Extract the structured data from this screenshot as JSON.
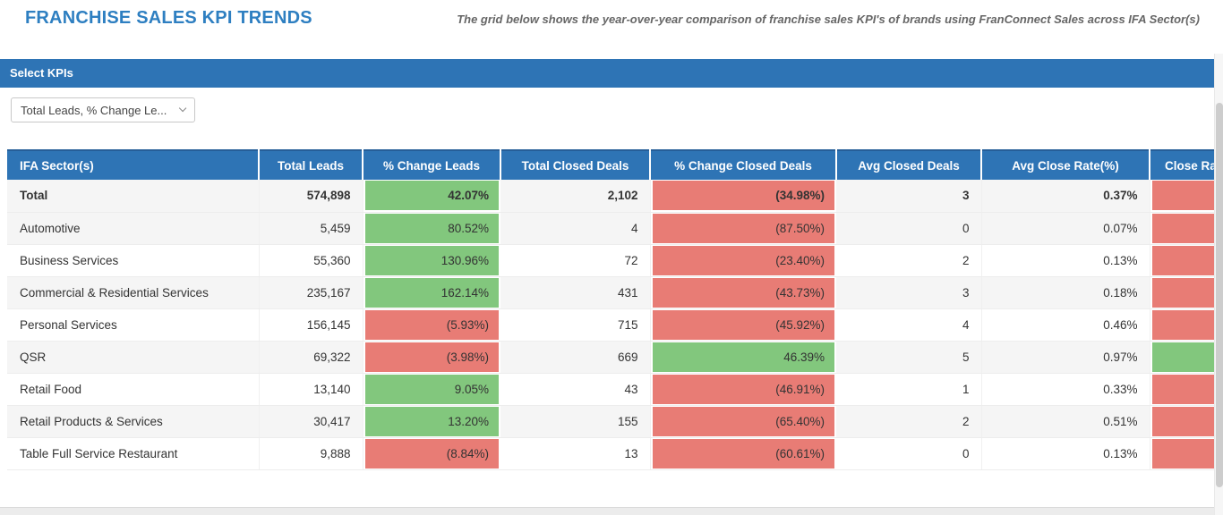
{
  "page": {
    "title": "FRANCHISE SALES KPI TRENDS",
    "subtitle": "The grid below shows the year-over-year comparison of franchise sales KPI's of brands using FranConnect Sales across IFA Sector(s)"
  },
  "kpi_panel": {
    "header": "Select KPIs",
    "dropdown_value": "Total Leads, % Change Le...",
    "dropdown_icon": "chevron-down-icon"
  },
  "colors": {
    "accent_blue": "#2e74b5",
    "title_blue": "#2e7fc1",
    "positive_green": "#82c77d",
    "negative_red": "#e87c75"
  },
  "table": {
    "columns": [
      "IFA Sector(s)",
      "Total Leads",
      "% Change Leads",
      "Total Closed Deals",
      "% Change Closed Deals",
      "Avg Closed Deals",
      "Avg Close Rate(%)",
      "Close Ra"
    ],
    "rows": [
      {
        "sector": "Total",
        "total_leads": "574,898",
        "pct_change_leads": "42.07%",
        "pct_change_leads_trend": "positive",
        "total_closed_deals": "2,102",
        "pct_change_closed_deals": "(34.98%)",
        "pct_change_closed_deals_trend": "negative",
        "avg_closed_deals": "3",
        "avg_close_rate": "0.37%",
        "close_rate_trend": "negative"
      },
      {
        "sector": "Automotive",
        "total_leads": "5,459",
        "pct_change_leads": "80.52%",
        "pct_change_leads_trend": "positive",
        "total_closed_deals": "4",
        "pct_change_closed_deals": "(87.50%)",
        "pct_change_closed_deals_trend": "negative",
        "avg_closed_deals": "0",
        "avg_close_rate": "0.07%",
        "close_rate_trend": "negative"
      },
      {
        "sector": "Business Services",
        "total_leads": "55,360",
        "pct_change_leads": "130.96%",
        "pct_change_leads_trend": "positive",
        "total_closed_deals": "72",
        "pct_change_closed_deals": "(23.40%)",
        "pct_change_closed_deals_trend": "negative",
        "avg_closed_deals": "2",
        "avg_close_rate": "0.13%",
        "close_rate_trend": "negative"
      },
      {
        "sector": "Commercial & Residential Services",
        "total_leads": "235,167",
        "pct_change_leads": "162.14%",
        "pct_change_leads_trend": "positive",
        "total_closed_deals": "431",
        "pct_change_closed_deals": "(43.73%)",
        "pct_change_closed_deals_trend": "negative",
        "avg_closed_deals": "3",
        "avg_close_rate": "0.18%",
        "close_rate_trend": "negative"
      },
      {
        "sector": "Personal Services",
        "total_leads": "156,145",
        "pct_change_leads": "(5.93%)",
        "pct_change_leads_trend": "negative",
        "total_closed_deals": "715",
        "pct_change_closed_deals": "(45.92%)",
        "pct_change_closed_deals_trend": "negative",
        "avg_closed_deals": "4",
        "avg_close_rate": "0.46%",
        "close_rate_trend": "negative"
      },
      {
        "sector": "QSR",
        "total_leads": "69,322",
        "pct_change_leads": "(3.98%)",
        "pct_change_leads_trend": "negative",
        "total_closed_deals": "669",
        "pct_change_closed_deals": "46.39%",
        "pct_change_closed_deals_trend": "positive",
        "avg_closed_deals": "5",
        "avg_close_rate": "0.97%",
        "close_rate_trend": "positive"
      },
      {
        "sector": "Retail Food",
        "total_leads": "13,140",
        "pct_change_leads": "9.05%",
        "pct_change_leads_trend": "positive",
        "total_closed_deals": "43",
        "pct_change_closed_deals": "(46.91%)",
        "pct_change_closed_deals_trend": "negative",
        "avg_closed_deals": "1",
        "avg_close_rate": "0.33%",
        "close_rate_trend": "negative"
      },
      {
        "sector": "Retail Products & Services",
        "total_leads": "30,417",
        "pct_change_leads": "13.20%",
        "pct_change_leads_trend": "positive",
        "total_closed_deals": "155",
        "pct_change_closed_deals": "(65.40%)",
        "pct_change_closed_deals_trend": "negative",
        "avg_closed_deals": "2",
        "avg_close_rate": "0.51%",
        "close_rate_trend": "negative"
      },
      {
        "sector": "Table Full Service Restaurant",
        "total_leads": "9,888",
        "pct_change_leads": "(8.84%)",
        "pct_change_leads_trend": "negative",
        "total_closed_deals": "13",
        "pct_change_closed_deals": "(60.61%)",
        "pct_change_closed_deals_trend": "negative",
        "avg_closed_deals": "0",
        "avg_close_rate": "0.13%",
        "close_rate_trend": "negative"
      }
    ]
  }
}
